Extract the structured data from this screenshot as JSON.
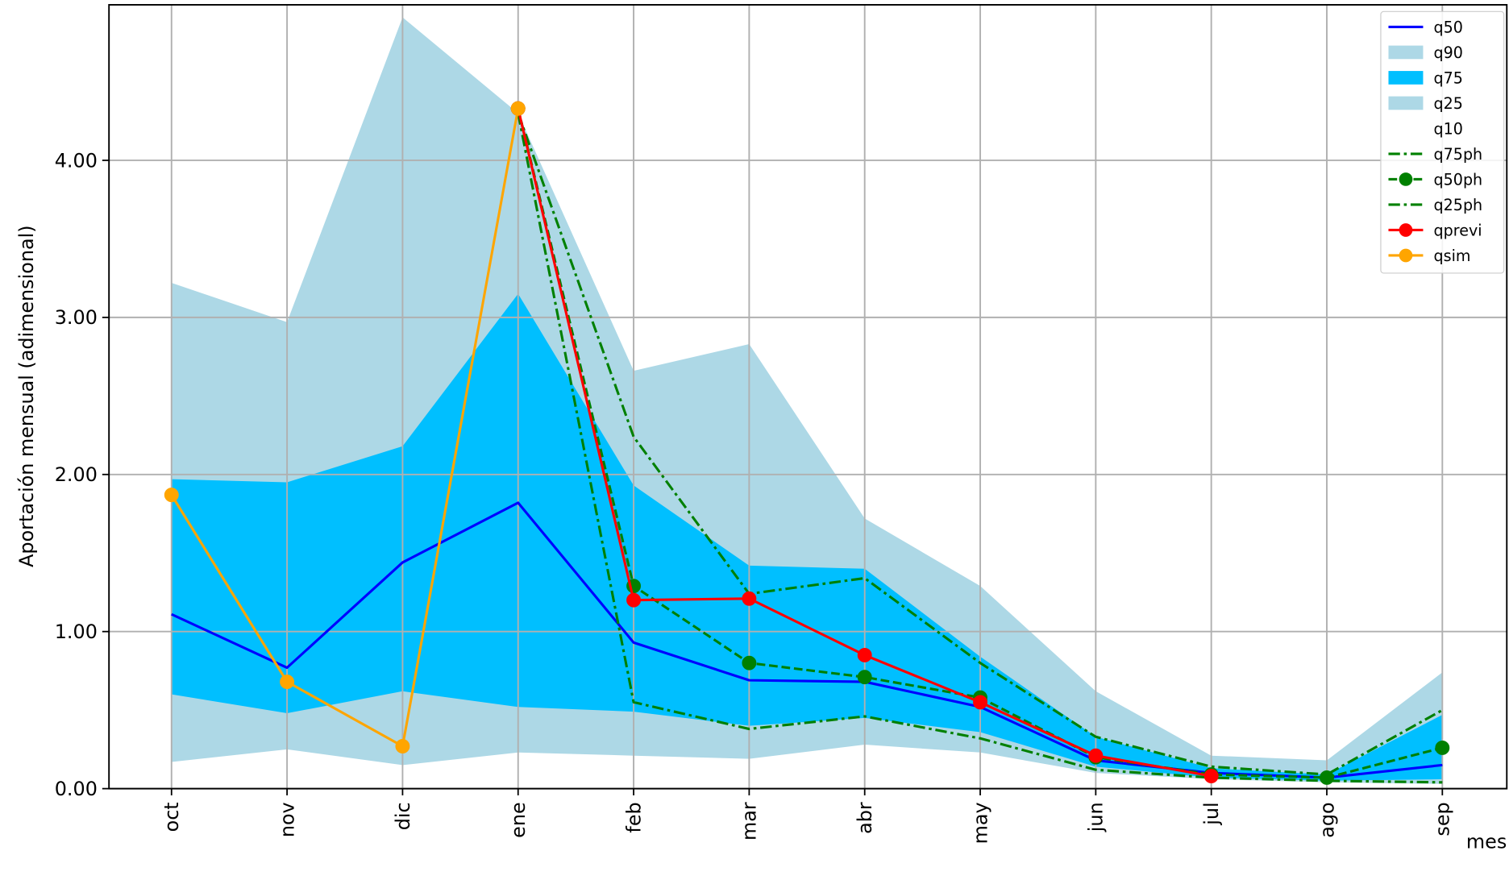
{
  "chart_data": {
    "type": "line",
    "xlabel": "mes",
    "ylabel": "Aportación mensual (adimensional)",
    "categories": [
      "oct",
      "nov",
      "dic",
      "ene",
      "feb",
      "mar",
      "abr",
      "may",
      "jun",
      "jul",
      "ago",
      "sep"
    ],
    "ylim": [
      0,
      4.99
    ],
    "yticks": [
      {
        "value": 0,
        "label": "0.00"
      },
      {
        "value": 1,
        "label": "1.00"
      },
      {
        "value": 2,
        "label": "2.00"
      },
      {
        "value": 3,
        "label": "3.00"
      },
      {
        "value": 4,
        "label": "4.00"
      }
    ],
    "grid": true,
    "legend": "upper right",
    "series": [
      {
        "name": "q50",
        "kind": "line",
        "color": "#0000ff",
        "linestyle": "solid",
        "marker": false,
        "values": [
          1.11,
          0.77,
          1.44,
          1.82,
          0.93,
          0.69,
          0.68,
          0.52,
          0.18,
          0.1,
          0.07,
          0.15
        ]
      },
      {
        "name": "q90",
        "kind": "area",
        "color": "#add8e6",
        "values": [
          3.22,
          2.97,
          4.91,
          4.3,
          2.66,
          2.83,
          1.72,
          1.29,
          0.62,
          0.21,
          0.18,
          0.74
        ]
      },
      {
        "name": "q75",
        "kind": "area",
        "color": "#00bfff",
        "values": [
          1.97,
          1.95,
          2.18,
          3.15,
          1.93,
          1.42,
          1.4,
          0.84,
          0.33,
          0.13,
          0.09,
          0.47
        ]
      },
      {
        "name": "q25",
        "kind": "area",
        "color": "#add8e6",
        "values": [
          0.6,
          0.48,
          0.62,
          0.52,
          0.49,
          0.4,
          0.45,
          0.36,
          0.14,
          0.07,
          0.05,
          0.06
        ]
      },
      {
        "name": "q10",
        "kind": "area",
        "color": "#ffffff",
        "values": [
          0.17,
          0.25,
          0.15,
          0.23,
          0.21,
          0.19,
          0.28,
          0.23,
          0.1,
          0.06,
          0.04,
          0.03
        ]
      },
      {
        "name": "q75ph",
        "kind": "line",
        "color": "#008000",
        "linestyle": "dashdot",
        "marker": false,
        "values": [
          null,
          null,
          null,
          4.3,
          2.24,
          1.24,
          1.34,
          0.8,
          0.33,
          0.14,
          0.09,
          0.5
        ]
      },
      {
        "name": "q50ph",
        "kind": "line",
        "color": "#008000",
        "linestyle": "dashed",
        "marker": true,
        "values": [
          null,
          null,
          null,
          4.33,
          1.29,
          0.8,
          0.71,
          0.58,
          0.2,
          0.09,
          0.07,
          0.26
        ]
      },
      {
        "name": "q25ph",
        "kind": "line",
        "color": "#008000",
        "linestyle": "dashdot",
        "marker": false,
        "values": [
          null,
          null,
          null,
          4.3,
          0.55,
          0.38,
          0.46,
          0.32,
          0.12,
          0.07,
          0.05,
          0.04
        ]
      },
      {
        "name": "qprevi",
        "kind": "line",
        "color": "#ff0000",
        "linestyle": "solid",
        "marker": true,
        "values": [
          null,
          null,
          null,
          4.33,
          1.2,
          1.21,
          0.85,
          0.55,
          0.21,
          0.08,
          null,
          null
        ]
      },
      {
        "name": "qsim",
        "kind": "line",
        "color": "#ffa500",
        "linestyle": "solid",
        "marker": true,
        "values": [
          1.87,
          0.68,
          0.27,
          4.33,
          null,
          null,
          null,
          null,
          null,
          null,
          null,
          null
        ]
      }
    ]
  }
}
